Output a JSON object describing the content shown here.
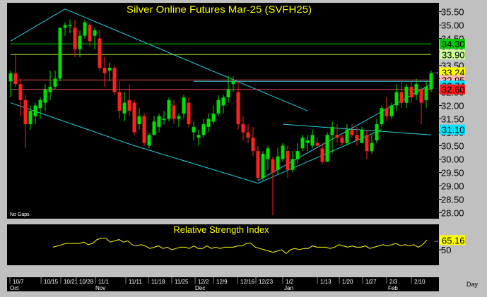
{
  "chart_data": [
    {
      "type": "candlestick",
      "title": "Silver Online Futures Mar-25 (SVFH25)",
      "note": "No Gaps",
      "ylim": [
        27.8,
        35.8
      ],
      "y_ticks": [
        "28.00",
        "28.50",
        "29.00",
        "29.50",
        "30.00",
        "30.50",
        "31.00",
        "31.50",
        "32.00",
        "32.50",
        "33.00",
        "33.50",
        "34.00",
        "34.50",
        "35.00",
        "35.50"
      ],
      "x_date_labels": [
        "10/7",
        "10/15",
        "10/21",
        "10/28",
        "11/1",
        "11/11",
        "11/18",
        "11/25",
        "12/2",
        "12/9",
        "12/16",
        "12/23",
        "1/2",
        "1/13",
        "1/20",
        "1/27",
        "2/3",
        "2/10"
      ],
      "x_month_labels": [
        "Oct",
        "Nov",
        "Dec",
        "Jan",
        "Feb"
      ],
      "x_period_label": "Day",
      "candles": [
        {
          "o": 32.9,
          "h": 33.3,
          "l": 32.3,
          "c": 33.2
        },
        {
          "o": 33.2,
          "h": 33.9,
          "l": 32.7,
          "c": 32.8
        },
        {
          "o": 32.8,
          "h": 33.0,
          "l": 31.6,
          "c": 32.2
        },
        {
          "o": 32.2,
          "h": 32.4,
          "l": 30.4,
          "c": 31.3
        },
        {
          "o": 31.3,
          "h": 32.0,
          "l": 31.1,
          "c": 31.8
        },
        {
          "o": 31.6,
          "h": 32.1,
          "l": 31.3,
          "c": 32.0
        },
        {
          "o": 31.9,
          "h": 32.3,
          "l": 31.5,
          "c": 32.2
        },
        {
          "o": 32.1,
          "h": 32.8,
          "l": 31.8,
          "c": 32.6
        },
        {
          "o": 32.5,
          "h": 33.3,
          "l": 32.2,
          "c": 32.7
        },
        {
          "o": 32.7,
          "h": 33.3,
          "l": 32.6,
          "c": 33.0
        },
        {
          "o": 33.0,
          "h": 34.9,
          "l": 32.9,
          "c": 34.9
        },
        {
          "o": 34.9,
          "h": 35.1,
          "l": 34.6,
          "c": 35.0
        },
        {
          "o": 35.0,
          "h": 35.2,
          "l": 34.7,
          "c": 35.0
        },
        {
          "o": 34.9,
          "h": 35.2,
          "l": 33.8,
          "c": 34.1
        },
        {
          "o": 34.1,
          "h": 34.8,
          "l": 33.8,
          "c": 34.6
        },
        {
          "o": 34.6,
          "h": 35.2,
          "l": 34.5,
          "c": 35.1
        },
        {
          "o": 35.0,
          "h": 35.1,
          "l": 34.2,
          "c": 34.4
        },
        {
          "o": 34.6,
          "h": 34.9,
          "l": 34.1,
          "c": 34.8
        },
        {
          "o": 34.5,
          "h": 34.8,
          "l": 33.3,
          "c": 33.4
        },
        {
          "o": 33.4,
          "h": 33.8,
          "l": 32.7,
          "c": 33.2
        },
        {
          "o": 33.3,
          "h": 33.6,
          "l": 32.9,
          "c": 33.4
        },
        {
          "o": 33.4,
          "h": 33.5,
          "l": 32.4,
          "c": 32.5
        },
        {
          "o": 32.5,
          "h": 32.9,
          "l": 31.5,
          "c": 31.8
        },
        {
          "o": 31.7,
          "h": 32.5,
          "l": 31.4,
          "c": 32.1
        },
        {
          "o": 32.2,
          "h": 32.8,
          "l": 31.6,
          "c": 31.8
        },
        {
          "o": 32.1,
          "h": 32.2,
          "l": 30.9,
          "c": 31.0
        },
        {
          "o": 31.3,
          "h": 31.9,
          "l": 31.1,
          "c": 31.6
        },
        {
          "o": 31.6,
          "h": 31.7,
          "l": 30.5,
          "c": 30.6
        },
        {
          "o": 30.5,
          "h": 31.0,
          "l": 30.4,
          "c": 30.9
        },
        {
          "o": 30.9,
          "h": 31.6,
          "l": 30.9,
          "c": 31.4
        },
        {
          "o": 31.2,
          "h": 31.7,
          "l": 31.0,
          "c": 31.6
        },
        {
          "o": 31.5,
          "h": 31.8,
          "l": 31.3,
          "c": 31.5
        },
        {
          "o": 31.5,
          "h": 32.3,
          "l": 31.4,
          "c": 32.2
        },
        {
          "o": 32.0,
          "h": 32.2,
          "l": 31.3,
          "c": 31.5
        },
        {
          "o": 31.5,
          "h": 31.7,
          "l": 31.2,
          "c": 31.6
        },
        {
          "o": 31.7,
          "h": 32.4,
          "l": 31.5,
          "c": 32.3
        },
        {
          "o": 32.1,
          "h": 32.3,
          "l": 31.2,
          "c": 31.3
        },
        {
          "o": 31.0,
          "h": 31.4,
          "l": 30.7,
          "c": 31.2
        },
        {
          "o": 30.8,
          "h": 31.1,
          "l": 30.5,
          "c": 30.9
        },
        {
          "o": 30.9,
          "h": 31.5,
          "l": 30.8,
          "c": 31.3
        },
        {
          "o": 31.2,
          "h": 31.7,
          "l": 31.0,
          "c": 31.5
        },
        {
          "o": 31.4,
          "h": 32.0,
          "l": 31.3,
          "c": 31.7
        },
        {
          "o": 31.7,
          "h": 32.4,
          "l": 31.6,
          "c": 32.2
        },
        {
          "o": 32.0,
          "h": 32.4,
          "l": 31.7,
          "c": 32.3
        },
        {
          "o": 32.3,
          "h": 33.1,
          "l": 32.1,
          "c": 32.6
        },
        {
          "o": 32.8,
          "h": 33.1,
          "l": 32.5,
          "c": 32.9
        },
        {
          "o": 32.5,
          "h": 32.9,
          "l": 31.1,
          "c": 31.3
        },
        {
          "o": 31.3,
          "h": 31.6,
          "l": 30.7,
          "c": 31.0
        },
        {
          "o": 31.0,
          "h": 31.3,
          "l": 30.6,
          "c": 30.8
        },
        {
          "o": 30.8,
          "h": 31.2,
          "l": 30.1,
          "c": 30.3
        },
        {
          "o": 30.3,
          "h": 30.5,
          "l": 29.2,
          "c": 29.3
        },
        {
          "o": 29.3,
          "h": 30.3,
          "l": 29.2,
          "c": 30.2
        },
        {
          "o": 30.0,
          "h": 30.5,
          "l": 29.6,
          "c": 30.4
        },
        {
          "o": 30.0,
          "h": 30.1,
          "l": 27.9,
          "c": 29.5
        },
        {
          "o": 29.6,
          "h": 30.4,
          "l": 29.4,
          "c": 30.1
        },
        {
          "o": 30.0,
          "h": 30.6,
          "l": 29.9,
          "c": 30.5
        },
        {
          "o": 30.3,
          "h": 30.5,
          "l": 29.3,
          "c": 29.6
        },
        {
          "o": 29.6,
          "h": 30.3,
          "l": 29.5,
          "c": 30.0
        },
        {
          "o": 30.0,
          "h": 30.6,
          "l": 29.8,
          "c": 30.3
        },
        {
          "o": 30.4,
          "h": 30.9,
          "l": 30.3,
          "c": 30.8
        },
        {
          "o": 30.6,
          "h": 30.9,
          "l": 30.3,
          "c": 30.7
        },
        {
          "o": 30.5,
          "h": 31.1,
          "l": 30.4,
          "c": 30.9
        },
        {
          "o": 30.6,
          "h": 30.8,
          "l": 30.4,
          "c": 30.5
        },
        {
          "o": 30.4,
          "h": 30.6,
          "l": 29.8,
          "c": 29.9
        },
        {
          "o": 29.9,
          "h": 31.0,
          "l": 29.9,
          "c": 30.9
        },
        {
          "o": 30.9,
          "h": 31.4,
          "l": 30.2,
          "c": 31.2
        },
        {
          "o": 30.9,
          "h": 31.3,
          "l": 30.6,
          "c": 30.8
        },
        {
          "o": 30.8,
          "h": 30.9,
          "l": 30.5,
          "c": 30.6
        },
        {
          "o": 30.6,
          "h": 31.3,
          "l": 30.5,
          "c": 31.1
        },
        {
          "o": 31.1,
          "h": 31.3,
          "l": 30.8,
          "c": 30.9
        },
        {
          "o": 30.9,
          "h": 31.2,
          "l": 30.5,
          "c": 30.7
        },
        {
          "o": 30.6,
          "h": 31.2,
          "l": 30.6,
          "c": 31.1
        },
        {
          "o": 30.9,
          "h": 31.1,
          "l": 30.0,
          "c": 30.3
        },
        {
          "o": 30.3,
          "h": 30.9,
          "l": 30.2,
          "c": 30.6
        },
        {
          "o": 30.7,
          "h": 31.5,
          "l": 30.6,
          "c": 31.3
        },
        {
          "o": 31.3,
          "h": 32.0,
          "l": 31.2,
          "c": 31.9
        },
        {
          "o": 31.9,
          "h": 32.3,
          "l": 31.4,
          "c": 31.6
        },
        {
          "o": 31.6,
          "h": 32.1,
          "l": 31.5,
          "c": 32.0
        },
        {
          "o": 32.0,
          "h": 32.8,
          "l": 31.8,
          "c": 32.5
        },
        {
          "o": 32.5,
          "h": 32.9,
          "l": 31.9,
          "c": 32.1
        },
        {
          "o": 32.1,
          "h": 32.8,
          "l": 31.9,
          "c": 32.7
        },
        {
          "o": 32.7,
          "h": 32.9,
          "l": 32.1,
          "c": 32.3
        },
        {
          "o": 32.4,
          "h": 33.0,
          "l": 32.2,
          "c": 32.8
        },
        {
          "o": 32.6,
          "h": 32.7,
          "l": 31.3,
          "c": 32.1
        },
        {
          "o": 32.2,
          "h": 32.9,
          "l": 31.9,
          "c": 32.7
        },
        {
          "o": 32.6,
          "h": 33.3,
          "l": 32.5,
          "c": 33.2
        }
      ],
      "lines": [
        {
          "name": "Upper channel line",
          "color": "#22d3e0",
          "points": [
            [
              0,
              34.4
            ],
            [
              11,
              35.6
            ],
            [
              60,
              31.8
            ]
          ]
        },
        {
          "name": "Lower channel line",
          "color": "#22d3e0",
          "points": [
            [
              0,
              32.1
            ],
            [
              25,
              30.5
            ],
            [
              50,
              29.1
            ],
            [
              75,
              31.1
            ]
          ]
        },
        {
          "name": "Middle trend line",
          "color": "#22d3e0",
          "points": [
            [
              37,
              32.9
            ],
            [
              85,
              32.9
            ]
          ]
        },
        {
          "name": "Upper cyan line",
          "color": "#22d3e0",
          "points": [
            [
              50,
              29.2
            ],
            [
              85,
              32.8
            ]
          ]
        },
        {
          "name": "Right trend line",
          "color": "#22d3e0",
          "points": [
            [
              55,
              31.3
            ],
            [
              85,
              30.9
            ]
          ]
        },
        {
          "name": "Horizontal level 34.30",
          "color": "#00cc00",
          "points": [
            [
              0,
              34.3
            ],
            [
              85,
              34.3
            ]
          ]
        },
        {
          "name": "Horizontal level 33.90",
          "color": "#9ee03a",
          "points": [
            [
              0,
              33.9
            ],
            [
              85,
              33.9
            ]
          ]
        },
        {
          "name": "Horizontal level 32.95",
          "color": "#e64848",
          "points": [
            [
              0,
              32.95
            ],
            [
              85,
              32.95
            ]
          ]
        },
        {
          "name": "Horizontal level 32.60",
          "color": "#e64848",
          "points": [
            [
              0,
              32.6
            ],
            [
              85,
              32.6
            ]
          ]
        }
      ],
      "price_tags": [
        {
          "value": "34.30",
          "bg": "#00cc00",
          "fg": "#000000"
        },
        {
          "value": "33.90",
          "bg": "#ccff99",
          "fg": "#000000"
        },
        {
          "value": "33.24",
          "bg": "#ffff00",
          "fg": "#000000"
        },
        {
          "value": "32.95",
          "bg": "#ffb6b6",
          "fg": "#000000"
        },
        {
          "value": "32.74",
          "bg": "#00e5ff",
          "fg": "#000000"
        },
        {
          "value": "32.60",
          "bg": "#ff1a1a",
          "fg": "#000000"
        },
        {
          "value": "31.10",
          "bg": "#00e5ff",
          "fg": "#000000"
        }
      ],
      "colors": {
        "up": "#00e000",
        "down": "#ff2020",
        "background": "#000000",
        "text": "#ffffff",
        "frame": "#c0c0c0",
        "line": "#22d3e0"
      }
    },
    {
      "type": "line",
      "title": "Relative Strength Index",
      "y_ticks": [
        "50"
      ],
      "last_value": "65.16",
      "color": "#ffff00",
      "values": [
        54,
        56,
        58,
        60,
        60,
        60,
        60,
        62,
        58,
        60,
        66,
        68,
        68,
        62,
        64,
        66,
        62,
        64,
        58,
        56,
        58,
        56,
        52,
        54,
        56,
        52,
        54,
        50,
        52,
        54,
        54,
        52,
        56,
        52,
        52,
        56,
        52,
        54,
        52,
        54,
        54,
        54,
        56,
        56,
        60,
        60,
        54,
        52,
        50,
        48,
        46,
        48,
        50,
        44,
        50,
        52,
        50,
        52,
        52,
        56,
        54,
        54,
        54,
        52,
        54,
        58,
        56,
        54,
        56,
        54,
        54,
        56,
        52,
        54,
        56,
        58,
        56,
        58,
        60,
        56,
        58,
        56,
        58,
        54,
        58,
        65.16
      ]
    }
  ]
}
